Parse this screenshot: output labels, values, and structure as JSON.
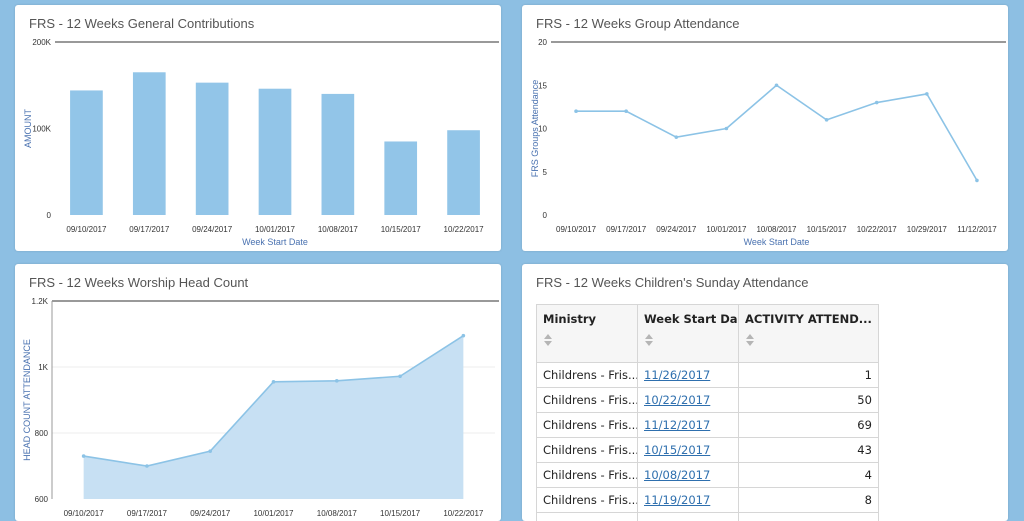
{
  "colors": {
    "bar": "#92c5e8",
    "line": "#8cc3e6",
    "area": "#c7e0f3",
    "link": "#2e6fae"
  },
  "panels": {
    "contributions": {
      "title": "FRS - 12 Weeks General Contributions"
    },
    "group_attendance": {
      "title": "FRS - 12 Weeks Group Attendance"
    },
    "worship": {
      "title": "FRS - 12 Weeks Worship Head Count"
    },
    "children": {
      "title": "FRS - 12 Weeks Children's Sunday Attendance",
      "columns": [
        "Ministry",
        "Week Start Da...",
        "ACTIVITY ATTEND..."
      ],
      "rows": [
        {
          "ministry": "Childrens - Fris...",
          "date": "11/26/2017",
          "attendance": "1"
        },
        {
          "ministry": "Childrens - Fris...",
          "date": "10/22/2017",
          "attendance": "50"
        },
        {
          "ministry": "Childrens - Fris...",
          "date": "11/12/2017",
          "attendance": "69"
        },
        {
          "ministry": "Childrens - Fris...",
          "date": "10/15/2017",
          "attendance": "43"
        },
        {
          "ministry": "Childrens - Fris...",
          "date": "10/08/2017",
          "attendance": "4"
        },
        {
          "ministry": "Childrens - Fris...",
          "date": "11/19/2017",
          "attendance": "8"
        }
      ]
    }
  },
  "chart_data": [
    {
      "type": "bar",
      "title": "FRS - 12 Weeks General Contributions",
      "categories": [
        "09/10/2017",
        "09/17/2017",
        "09/24/2017",
        "10/01/2017",
        "10/08/2017",
        "10/15/2017",
        "10/22/2017"
      ],
      "values": [
        144000,
        165000,
        153000,
        146000,
        140000,
        85000,
        98000
      ],
      "xlabel": "Week Start Date",
      "ylabel": "AMOUNT",
      "ylim": [
        0,
        200000
      ],
      "yticks": [
        {
          "v": 0,
          "label": "0"
        },
        {
          "v": 100000,
          "label": "100K"
        },
        {
          "v": 200000,
          "label": "200K"
        }
      ],
      "grid": false
    },
    {
      "type": "line",
      "title": "FRS - 12 Weeks Group Attendance",
      "categories": [
        "09/10/2017",
        "09/17/2017",
        "09/24/2017",
        "10/01/2017",
        "10/08/2017",
        "10/15/2017",
        "10/22/2017",
        "10/29/2017",
        "11/12/2017"
      ],
      "values": [
        12,
        12,
        9,
        10,
        15,
        11,
        13,
        14,
        4
      ],
      "xlabel": "Week Start Date",
      "ylabel": "FRS Groups Attendance",
      "ylim": [
        0,
        20
      ],
      "yticks": [
        {
          "v": 0,
          "label": "0"
        },
        {
          "v": 5,
          "label": "5"
        },
        {
          "v": 10,
          "label": "10"
        },
        {
          "v": 15,
          "label": "15"
        },
        {
          "v": 20,
          "label": "20"
        }
      ],
      "grid": false
    },
    {
      "type": "area",
      "title": "FRS - 12 Weeks Worship Head Count",
      "categories": [
        "09/10/2017",
        "09/17/2017",
        "09/24/2017",
        "10/01/2017",
        "10/08/2017",
        "10/15/2017",
        "10/22/2017"
      ],
      "values": [
        730,
        700,
        745,
        955,
        958,
        972,
        1095
      ],
      "xlabel": "",
      "ylabel": "HEAD COUNT ATTENDANCE",
      "ylim": [
        600,
        1200
      ],
      "yticks": [
        {
          "v": 600,
          "label": "600"
        },
        {
          "v": 800,
          "label": "800"
        },
        {
          "v": 1000,
          "label": "1K"
        },
        {
          "v": 1200,
          "label": "1.2K"
        }
      ],
      "grid": true
    }
  ]
}
